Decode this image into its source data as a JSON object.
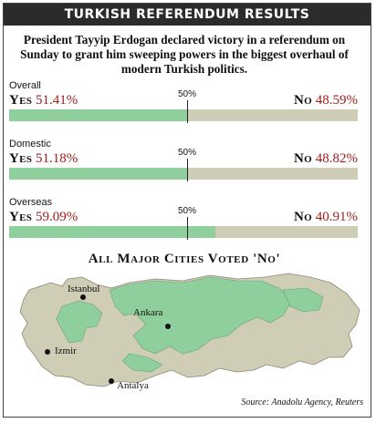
{
  "title": "TURKISH REFERENDUM RESULTS",
  "intro": "President Tayyip Erdogan declared victory in a referendum on Sunday to grant him sweeping powers in the biggest overhaul of modern Turkish politics.",
  "chart_data": [
    {
      "type": "bar",
      "title": "Overall",
      "categories": [
        "Yes",
        "No"
      ],
      "values": [
        51.41,
        48.59
      ],
      "ylim": [
        0,
        100
      ],
      "reference": 50
    },
    {
      "type": "bar",
      "title": "Domestic",
      "categories": [
        "Yes",
        "No"
      ],
      "values": [
        51.18,
        48.82
      ],
      "ylim": [
        0,
        100
      ],
      "reference": 50
    },
    {
      "type": "bar",
      "title": "Overseas",
      "categories": [
        "Yes",
        "No"
      ],
      "values": [
        59.09,
        40.91
      ],
      "ylim": [
        0,
        100
      ],
      "reference": 50
    }
  ],
  "labels": {
    "yes": "Yes",
    "no": "No",
    "fifty": "50%"
  },
  "results": [
    {
      "label": "Overall",
      "yes_pct": "51.41%",
      "no_pct": "48.59%"
    },
    {
      "label": "Domestic",
      "yes_pct": "51.18%",
      "no_pct": "48.82%"
    },
    {
      "label": "Overseas",
      "yes_pct": "59.09%",
      "no_pct": "40.91%"
    }
  ],
  "map": {
    "title": "All Major Cities Voted 'No'",
    "cities": [
      "Istanbul",
      "Ankara",
      "Izmir",
      "Antalya"
    ]
  },
  "source": "Source: Anadolu Agency, Reuters",
  "colors": {
    "yes": "#8ecf9d",
    "no": "#cfcdb5",
    "percent_text": "#a11c1c",
    "title_bar": "#2b2b2b"
  }
}
